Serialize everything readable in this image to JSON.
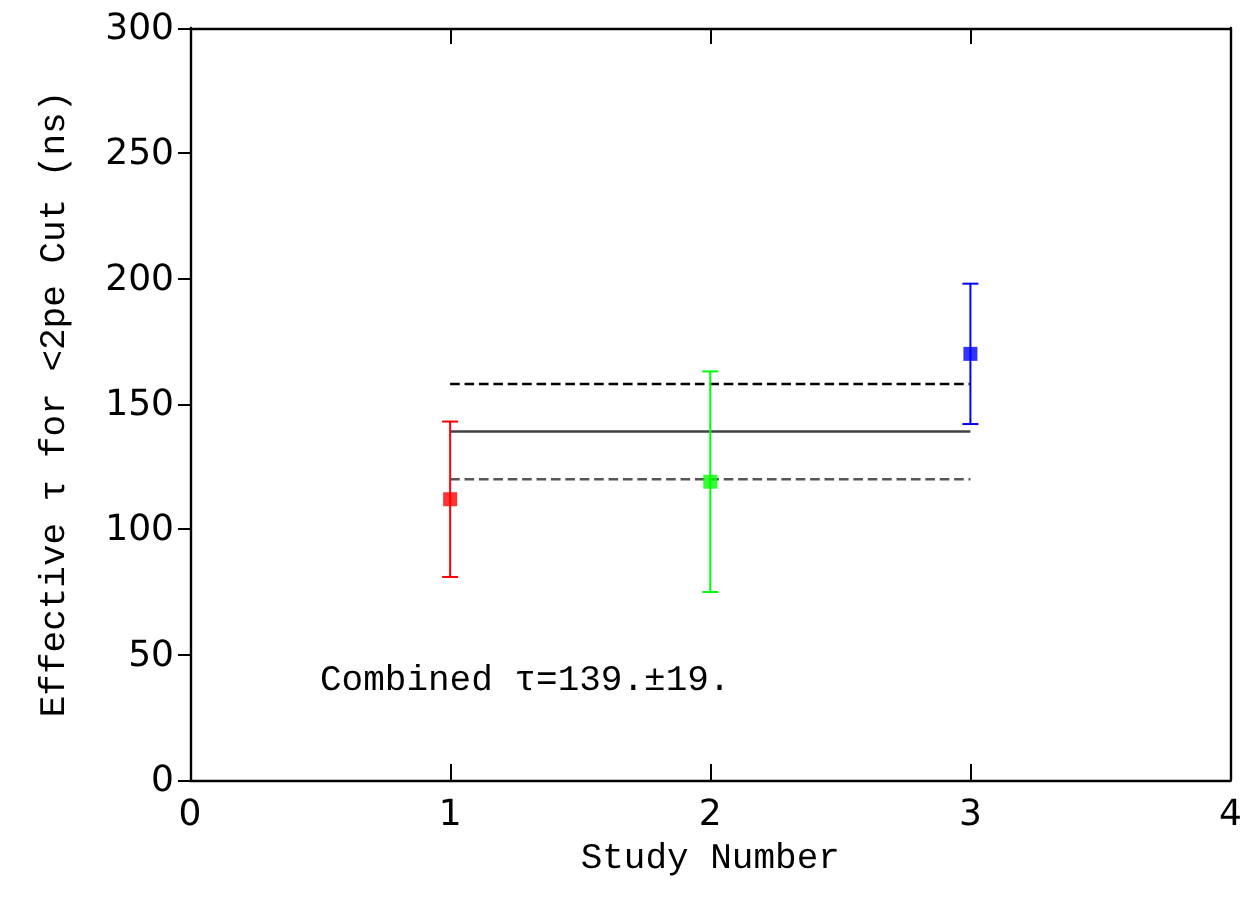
{
  "chart_data": {
    "type": "scatter",
    "xlabel": "Study Number",
    "ylabel": "Effective τ for <2pe Cut (ns)",
    "xlim": [
      0,
      4
    ],
    "xticks": [
      0,
      1,
      2,
      3,
      4
    ],
    "ylim": [
      0,
      300
    ],
    "yticks": [
      0,
      50,
      100,
      150,
      200,
      250,
      300
    ],
    "grid": false,
    "series": [
      {
        "marker": "square",
        "x": [
          1,
          2,
          3
        ],
        "values": [
          112,
          119,
          170
        ],
        "errors": [
          [
            81,
            143
          ],
          [
            75,
            163
          ],
          [
            142,
            198
          ]
        ],
        "colors": [
          "#ff0000",
          "#00ff00",
          "#0000ff"
        ]
      },
      {
        "type": "line",
        "marker": "none",
        "line_style": "solid",
        "x": [
          1,
          3
        ],
        "values": [
          139,
          139
        ],
        "color": "#404040"
      },
      {
        "type": "line",
        "marker": "none",
        "line_style": "dashed",
        "x": [
          1,
          3
        ],
        "values": [
          158,
          158
        ],
        "color": "#000000"
      },
      {
        "type": "line",
        "marker": "none",
        "line_style": "dashed",
        "x": [
          1,
          3
        ],
        "values": [
          120,
          120
        ],
        "color": "#555555"
      }
    ],
    "annotations": [
      "Combined τ=139.±19."
    ]
  }
}
